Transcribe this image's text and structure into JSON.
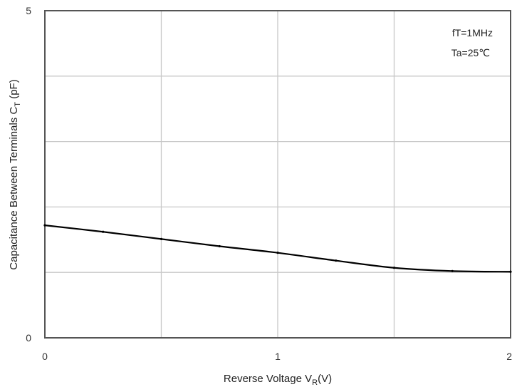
{
  "chart_data": {
    "type": "line",
    "xlabel": {
      "main": "Reverse Voltage V",
      "sub": "R",
      "tail": "(V)"
    },
    "ylabel": {
      "main": "Capacitance Between Terminals C",
      "sub": "T",
      "tail": " (pF)"
    },
    "xlim": [
      0,
      2
    ],
    "ylim": [
      0,
      5
    ],
    "x_ticks": [
      0,
      1,
      2
    ],
    "x_tick_labels": [
      "0",
      "1",
      "2"
    ],
    "y_ticks": [
      0,
      5
    ],
    "y_tick_labels": [
      "0",
      "5"
    ],
    "x_gridlines": [
      0.5,
      1,
      1.5
    ],
    "y_gridlines": [
      1,
      2,
      3,
      4
    ],
    "grid": true,
    "annotations": [
      "fT=1MHz",
      "Ta=25℃"
    ],
    "series": [
      {
        "color": "#000000",
        "x": [
          0,
          0.25,
          0.5,
          0.75,
          1.0,
          1.25,
          1.5,
          1.75,
          2.0
        ],
        "y": [
          1.72,
          1.62,
          1.51,
          1.4,
          1.3,
          1.18,
          1.07,
          1.02,
          1.01
        ]
      }
    ]
  }
}
